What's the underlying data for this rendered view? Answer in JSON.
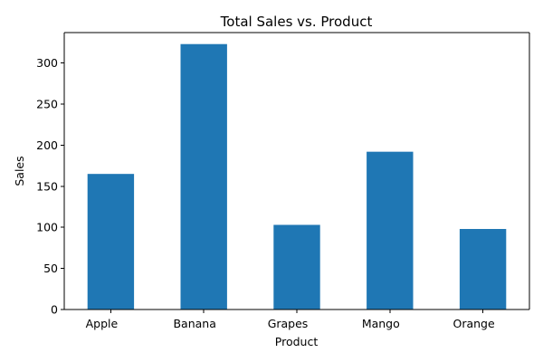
{
  "chart_data": {
    "type": "bar",
    "title": "Total Sales vs. Product",
    "xlabel": "Product",
    "ylabel": "Sales",
    "categories": [
      "Apple",
      "Banana",
      "Grapes",
      "Mango",
      "Orange"
    ],
    "values": [
      165,
      323,
      103,
      192,
      98
    ],
    "ylim": [
      0,
      337
    ],
    "yticks": [
      0,
      50,
      100,
      150,
      200,
      250,
      300
    ],
    "bar_color": "#1f77b4",
    "grid": false,
    "legend": "none"
  }
}
